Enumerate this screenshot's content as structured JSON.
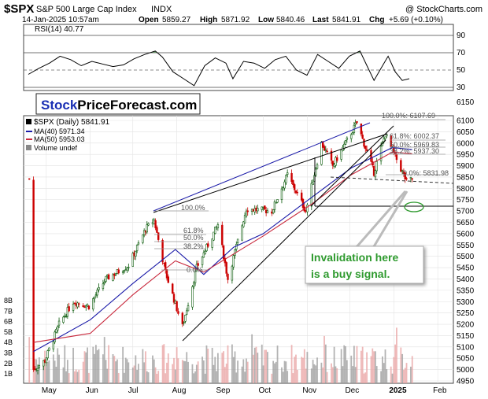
{
  "header": {
    "symbol": "$SPX",
    "name": "S&P 500 Large Cap Index",
    "exchange": "INDX",
    "source": "@ StockCharts.com",
    "date": "14-Jan-2025 10:57am",
    "open_label": "Open",
    "open": "5859.27",
    "high_label": "High",
    "high": "5871.92",
    "low_label": "Low",
    "low": "5840.46",
    "last_label": "Last",
    "last": "5841.91",
    "chg_label": "Chg",
    "chg": "+5.69 (+0.10%)"
  },
  "rsi_panel": {
    "label": "RSI(14) 40.77",
    "ticks": [
      "90",
      "70",
      "50",
      "30"
    ]
  },
  "legend": {
    "price": "$SPX (Daily) 5841.91",
    "ma40": "MA(40) 5971.34",
    "ma50": "MA(50) 5953.03",
    "volume": "Volume undef"
  },
  "logo": {
    "part1": "Stock",
    "part2": "PriceForecast.com"
  },
  "annotation": {
    "line1": "Invalidation here",
    "line2": "is a buy signal."
  },
  "fib_right": [
    "100.0%: 6107.69",
    "61.8%: 6002.37",
    "50.0%: 5969.83",
    "38.2%: 5937.30",
    "0.0%: 5831.98"
  ],
  "fib_left": [
    "100.0%",
    "61.8%",
    "50.0%",
    "38.2%",
    "0.0%"
  ],
  "colors": {
    "up": "#0a5a0a",
    "down": "#cc0000",
    "ma40": "#1a1aa8",
    "ma50": "#c8283c",
    "rsi_fill": "#5a8f5a",
    "annotation_text": "#2e9a2e",
    "logo_blue": "#1a2fb4"
  },
  "chart_data": {
    "type": "candlestick",
    "y_ticks": [
      6100,
      6050,
      6000,
      5950,
      5900,
      5850,
      5800,
      5750,
      5700,
      5650,
      5600,
      5550,
      5500,
      5450,
      5400,
      5350,
      5300,
      5250,
      5200,
      5150,
      5100,
      5050,
      5000,
      4950
    ],
    "ylim": [
      4930,
      6140
    ],
    "x_labels": [
      "May",
      "Jun",
      "Jul",
      "Aug",
      "Sep",
      "Oct",
      "Nov",
      "Dec",
      "2025",
      "Feb"
    ],
    "volume_ticks": [
      "8B",
      "7B",
      "6B",
      "5B",
      "4B",
      "3B",
      "2B",
      "1B"
    ],
    "close_path": [
      [
        "2024-04-22",
        5000
      ],
      [
        "2024-04-30",
        5040
      ],
      [
        "2024-05-10",
        5200
      ],
      [
        "2024-05-20",
        5300
      ],
      [
        "2024-05-31",
        5280
      ],
      [
        "2024-06-12",
        5400
      ],
      [
        "2024-06-28",
        5460
      ],
      [
        "2024-07-10",
        5620
      ],
      [
        "2024-07-16",
        5660
      ],
      [
        "2024-07-24",
        5430
      ],
      [
        "2024-08-05",
        5190
      ],
      [
        "2024-08-15",
        5450
      ],
      [
        "2024-08-30",
        5640
      ],
      [
        "2024-09-06",
        5400
      ],
      [
        "2024-09-19",
        5710
      ],
      [
        "2024-10-07",
        5700
      ],
      [
        "2024-10-18",
        5860
      ],
      [
        "2024-10-31",
        5700
      ],
      [
        "2024-11-11",
        6000
      ],
      [
        "2024-11-19",
        5900
      ],
      [
        "2024-12-06",
        6090
      ],
      [
        "2024-12-18",
        5870
      ],
      [
        "2024-12-26",
        6040
      ],
      [
        "2025-01-10",
        5830
      ],
      [
        "2025-01-14",
        5842
      ]
    ],
    "ma40_path": [
      [
        "2024-04-22",
        5080
      ],
      [
        "2024-06-01",
        5220
      ],
      [
        "2024-07-01",
        5380
      ],
      [
        "2024-07-31",
        5530
      ],
      [
        "2024-08-20",
        5420
      ],
      [
        "2024-09-10",
        5540
      ],
      [
        "2024-10-01",
        5600
      ],
      [
        "2024-11-04",
        5760
      ],
      [
        "2024-12-02",
        5890
      ],
      [
        "2024-12-31",
        5980
      ],
      [
        "2025-01-14",
        5971
      ]
    ],
    "ma50_path": [
      [
        "2024-04-22",
        5120
      ],
      [
        "2024-06-01",
        5160
      ],
      [
        "2024-07-01",
        5330
      ],
      [
        "2024-07-31",
        5480
      ],
      [
        "2024-08-20",
        5430
      ],
      [
        "2024-09-10",
        5510
      ],
      [
        "2024-10-01",
        5590
      ],
      [
        "2024-11-04",
        5730
      ],
      [
        "2024-12-02",
        5860
      ],
      [
        "2024-12-31",
        5960
      ],
      [
        "2025-01-14",
        5953
      ]
    ],
    "rsi_path": [
      [
        0,
        45
      ],
      [
        3,
        52
      ],
      [
        6,
        58
      ],
      [
        9,
        66
      ],
      [
        12,
        62
      ],
      [
        15,
        55
      ],
      [
        18,
        60
      ],
      [
        21,
        57
      ],
      [
        24,
        54
      ],
      [
        27,
        56
      ],
      [
        30,
        63
      ],
      [
        33,
        68
      ],
      [
        36,
        72
      ],
      [
        38,
        65
      ],
      [
        41,
        48
      ],
      [
        44,
        40
      ],
      [
        47,
        32
      ],
      [
        50,
        55
      ],
      [
        53,
        64
      ],
      [
        56,
        58
      ],
      [
        58,
        40
      ],
      [
        61,
        60
      ],
      [
        64,
        58
      ],
      [
        67,
        52
      ],
      [
        70,
        62
      ],
      [
        73,
        66
      ],
      [
        76,
        50
      ],
      [
        79,
        44
      ],
      [
        82,
        68
      ],
      [
        85,
        60
      ],
      [
        88,
        52
      ],
      [
        91,
        66
      ],
      [
        94,
        72
      ],
      [
        96,
        55
      ],
      [
        98,
        38
      ],
      [
        100,
        52
      ],
      [
        102,
        66
      ],
      [
        104,
        48
      ],
      [
        106,
        38
      ],
      [
        108,
        40
      ]
    ],
    "levels": [
      {
        "name": "fib-100-right",
        "value": 6107.69
      },
      {
        "name": "fib-61.8-right",
        "value": 6002.37
      },
      {
        "name": "fib-50-right",
        "value": 5969.83
      },
      {
        "name": "fib-38.2-right",
        "value": 5937.3
      },
      {
        "name": "fib-0-right",
        "value": 5831.98
      },
      {
        "name": "support-5700",
        "value": 5700
      }
    ]
  }
}
